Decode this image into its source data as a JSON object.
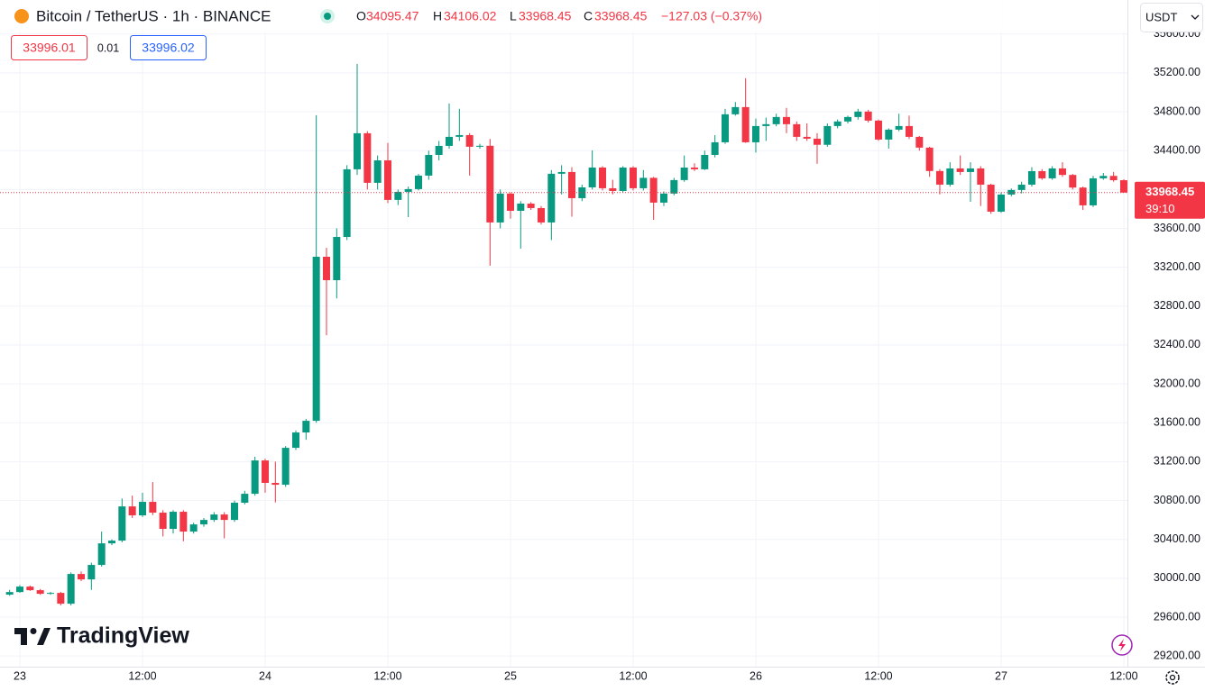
{
  "header": {
    "symbol": "Bitcoin / TetherUS · 1h · BINANCE",
    "ohlc_letters": [
      "O",
      "H",
      "L",
      "C"
    ],
    "change": "−127.03 (−0.37%)",
    "bid": 33996.01,
    "spread": 0.01,
    "ask": 33996.02
  },
  "currency": "USDT",
  "watermark": "TradingView",
  "countdown": "39:10",
  "chart_data": {
    "type": "candlestick",
    "up_color": "#089981",
    "down_color": "#f23645",
    "grid": true,
    "ylim": [
      29090,
      35950
    ],
    "yticks": [
      {
        "value": 29200,
        "label": "29200.00"
      },
      {
        "value": 29600,
        "label": "29600.00"
      },
      {
        "value": 30000,
        "label": "30000.00"
      },
      {
        "value": 30400,
        "label": "30400.00"
      },
      {
        "value": 30800,
        "label": "30800.00"
      },
      {
        "value": 31200,
        "label": "31200.00"
      },
      {
        "value": 31600,
        "label": "31600.00"
      },
      {
        "value": 32000,
        "label": "32000.00"
      },
      {
        "value": 32400,
        "label": "32400.00"
      },
      {
        "value": 32800,
        "label": "32800.00"
      },
      {
        "value": 33200,
        "label": "33200.00"
      },
      {
        "value": 33600,
        "label": "33600.00"
      },
      {
        "value": 34000,
        "label": "34000.00"
      },
      {
        "value": 34400,
        "label": "34400.00"
      },
      {
        "value": 34800,
        "label": "34800.00"
      },
      {
        "value": 35200,
        "label": "35200.00"
      },
      {
        "value": 35600,
        "label": "35600.00"
      }
    ],
    "categories": [
      null,
      "23",
      null,
      null,
      null,
      null,
      null,
      null,
      null,
      null,
      null,
      null,
      null,
      "12:00",
      null,
      null,
      null,
      null,
      null,
      null,
      null,
      null,
      null,
      null,
      null,
      "24",
      null,
      null,
      null,
      null,
      null,
      null,
      null,
      null,
      null,
      null,
      null,
      "12:00",
      null,
      null,
      null,
      null,
      null,
      null,
      null,
      null,
      null,
      null,
      null,
      "25",
      null,
      null,
      null,
      null,
      null,
      null,
      null,
      null,
      null,
      null,
      null,
      "12:00",
      null,
      null,
      null,
      null,
      null,
      null,
      null,
      null,
      null,
      null,
      null,
      "26",
      null,
      null,
      null,
      null,
      null,
      null,
      null,
      null,
      null,
      null,
      null,
      "12:00",
      null,
      null,
      null,
      null,
      null,
      null,
      null,
      null,
      null,
      null,
      null,
      "27",
      null,
      null,
      null,
      null,
      null,
      null,
      null,
      null,
      null,
      null,
      null,
      "12:00"
    ],
    "open": [
      29831,
      29858,
      29914,
      29877,
      29840,
      29849,
      29738,
      30044,
      29988,
      30137,
      30359,
      30387,
      30739,
      30647,
      30786,
      30675,
      30508,
      30684,
      30480,
      30554,
      30600,
      30656,
      30600,
      30777,
      30869,
      31212,
      30981,
      30962,
      31342,
      31500,
      31620,
      33308,
      33067,
      33512,
      34208,
      34579,
      34069,
      34300,
      33893,
      33976,
      34004,
      34143,
      34356,
      34449,
      34542,
      34560,
      34440,
      34450,
      33661,
      33958,
      33781,
      33855,
      33809,
      33661,
      34162,
      34180,
      33911,
      34022,
      34226,
      34013,
      33985,
      34226,
      34013,
      34120,
      33865,
      33958,
      34097,
      34226,
      34208,
      34356,
      34486,
      34774,
      34848,
      34486,
      34653,
      34672,
      34746,
      34672,
      34542,
      34523,
      34460,
      34653,
      34700,
      34746,
      34802,
      34709,
      34514,
      34616,
      34653,
      34542,
      34431,
      34190,
      34050,
      34217,
      34180,
      34217,
      34050,
      33772,
      33948,
      33995,
      34050,
      34189,
      34115,
      34217,
      34150,
      34020,
      33837,
      34115,
      34140,
      34095.47
    ],
    "high": [
      29880,
      29930,
      29925,
      29890,
      29860,
      29860,
      30060,
      30070,
      30160,
      30480,
      30400,
      30820,
      30850,
      30880,
      30990,
      30700,
      30700,
      30700,
      30570,
      30620,
      30680,
      30680,
      30800,
      30900,
      31250,
      31230,
      31200,
      31360,
      31520,
      31640,
      34765,
      33400,
      33600,
      34250,
      35293,
      34600,
      34350,
      34480,
      34000,
      34030,
      34160,
      34400,
      34500,
      34885,
      34830,
      34580,
      34470,
      34520,
      34000,
      33970,
      33880,
      33870,
      33830,
      34200,
      34250,
      34230,
      34050,
      34403,
      34240,
      34100,
      34240,
      34240,
      34200,
      34130,
      33980,
      34120,
      34350,
      34270,
      34400,
      34560,
      34830,
      34900,
      35145,
      34730,
      34740,
      34780,
      34840,
      34700,
      34680,
      34580,
      34680,
      34720,
      34760,
      34830,
      34820,
      34720,
      34630,
      34780,
      34760,
      34550,
      34440,
      34210,
      34280,
      34350,
      34280,
      34240,
      34060,
      33970,
      34010,
      34080,
      34230,
      34210,
      34240,
      34280,
      34160,
      34030,
      34140,
      34170,
      34180,
      34106.02
    ],
    "low": [
      29820,
      29850,
      29870,
      29830,
      29830,
      29720,
      29720,
      29970,
      29880,
      30120,
      30340,
      30370,
      30620,
      30630,
      30650,
      30430,
      30460,
      30380,
      30460,
      30530,
      30580,
      30410,
      30580,
      30760,
      30850,
      30880,
      30780,
      30940,
      31320,
      31425,
      31600,
      32500,
      32880,
      33480,
      34150,
      34000,
      34000,
      33860,
      33840,
      33716,
      33990,
      34100,
      34300,
      34420,
      34500,
      34143,
      34420,
      33216,
      33600,
      33700,
      33392,
      33790,
      33640,
      33480,
      33950,
      33720,
      33880,
      34000,
      33990,
      33950,
      33970,
      33990,
      33990,
      33688,
      33830,
      33940,
      34080,
      34190,
      34200,
      34330,
      34470,
      34760,
      34480,
      34380,
      34500,
      34650,
      34580,
      34500,
      34500,
      34264,
      34440,
      34630,
      34680,
      34720,
      34690,
      34500,
      34421,
      34600,
      34520,
      34400,
      34130,
      33950,
      34030,
      34150,
      33874,
      33830,
      33750,
      33760,
      33930,
      33960,
      34030,
      34100,
      34100,
      34130,
      34000,
      33790,
      33820,
      34100,
      34080,
      33968.45
    ],
    "close": [
      29858,
      29914,
      29877,
      29840,
      29849,
      29738,
      30044,
      29988,
      30137,
      30359,
      30387,
      30739,
      30647,
      30786,
      30675,
      30508,
      30684,
      30480,
      30554,
      30600,
      30656,
      30600,
      30777,
      30869,
      31212,
      30981,
      30962,
      31342,
      31500,
      31620,
      33308,
      33067,
      33512,
      34208,
      34579,
      34069,
      34300,
      33893,
      33976,
      34004,
      34143,
      34356,
      34449,
      34542,
      34560,
      34440,
      34450,
      33661,
      33958,
      33781,
      33855,
      33809,
      33661,
      34162,
      34180,
      33911,
      34022,
      34226,
      34013,
      33985,
      34226,
      34013,
      34120,
      33865,
      33958,
      34097,
      34226,
      34208,
      34356,
      34486,
      34774,
      34848,
      34486,
      34653,
      34672,
      34746,
      34672,
      34542,
      34523,
      34460,
      34653,
      34700,
      34746,
      34802,
      34709,
      34514,
      34616,
      34653,
      34542,
      34431,
      34190,
      34050,
      34217,
      34180,
      34217,
      34050,
      33772,
      33948,
      33995,
      34050,
      34189,
      34115,
      34217,
      34150,
      34020,
      33837,
      34115,
      34140,
      34095.47,
      33968.45
    ]
  }
}
